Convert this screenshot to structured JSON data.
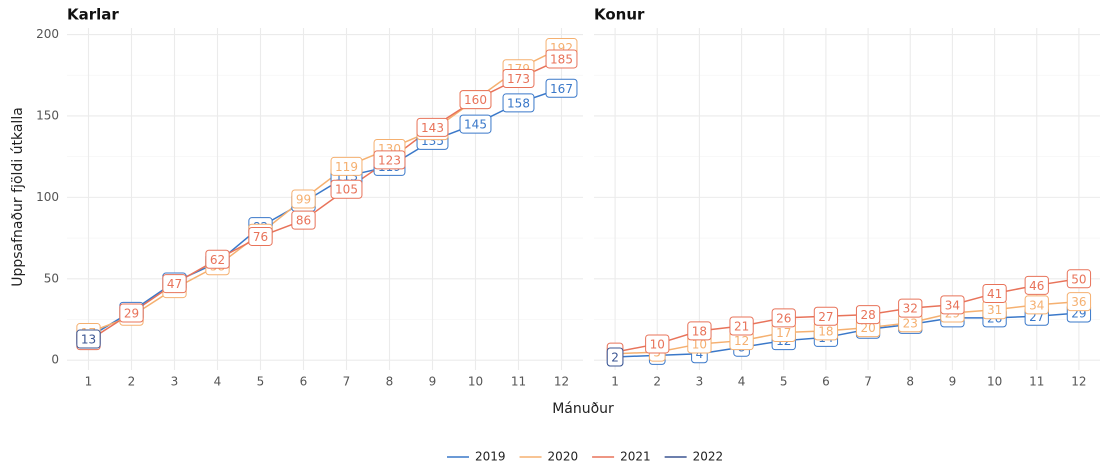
{
  "chart_data": [
    {
      "type": "line",
      "title": "Karlar",
      "ylabel": "Uppsafnaður fjöldi útkalla",
      "xlabel": "Mánuður",
      "x": [
        1,
        2,
        3,
        4,
        5,
        6,
        7,
        8,
        9,
        10,
        11,
        12
      ],
      "xlim": [
        0.5,
        12.5
      ],
      "xticks": [
        1,
        2,
        3,
        4,
        5,
        6,
        7,
        8,
        9,
        10,
        11,
        12
      ],
      "ylim": [
        -6,
        204
      ],
      "yticks": [
        0,
        50,
        100,
        150,
        200
      ],
      "grid": true,
      "series": [
        {
          "name": "2019",
          "color": "#3a78c9",
          "values": [
            14,
            30,
            48,
            60,
            82,
            97,
            113,
            119,
            135,
            145,
            158,
            167
          ]
        },
        {
          "name": "2020",
          "color": "#f5b070",
          "values": [
            17,
            27,
            44,
            58,
            78,
            99,
            119,
            130,
            141,
            160,
            179,
            192
          ]
        },
        {
          "name": "2021",
          "color": "#e8735a",
          "values": [
            12,
            29,
            47,
            62,
            76,
            86,
            105,
            123,
            143,
            160,
            173,
            185
          ]
        },
        {
          "name": "2022",
          "color": "#3b5592",
          "values": [
            13,
            null,
            null,
            null,
            null,
            null,
            null,
            null,
            null,
            null,
            null,
            null
          ]
        }
      ]
    },
    {
      "type": "line",
      "title": "Konur",
      "x": [
        1,
        2,
        3,
        4,
        5,
        6,
        7,
        8,
        9,
        10,
        11,
        12
      ],
      "xlim": [
        0.5,
        12.5
      ],
      "xticks": [
        1,
        2,
        3,
        4,
        5,
        6,
        7,
        8,
        9,
        10,
        11,
        12
      ],
      "ylim": [
        -6,
        204
      ],
      "yticks": [
        0,
        50,
        100,
        150,
        200
      ],
      "grid": true,
      "series": [
        {
          "color": "#3a78c9",
          "values": [
            2,
            3,
            4,
            8,
            12,
            14,
            19,
            22,
            26,
            26,
            27,
            29
          ]
        },
        {
          "color": "#f5b070",
          "values": [
            4,
            5,
            10,
            12,
            17,
            18,
            20,
            23,
            29,
            31,
            34,
            36
          ]
        },
        {
          "color": "#e8735a",
          "values": [
            5,
            10,
            18,
            21,
            26,
            27,
            28,
            32,
            34,
            41,
            46,
            50
          ]
        },
        {
          "color": "#3b5592",
          "values": [
            2,
            null,
            null,
            null,
            null,
            null,
            null,
            null,
            null,
            null,
            null,
            null
          ]
        }
      ]
    }
  ]
}
